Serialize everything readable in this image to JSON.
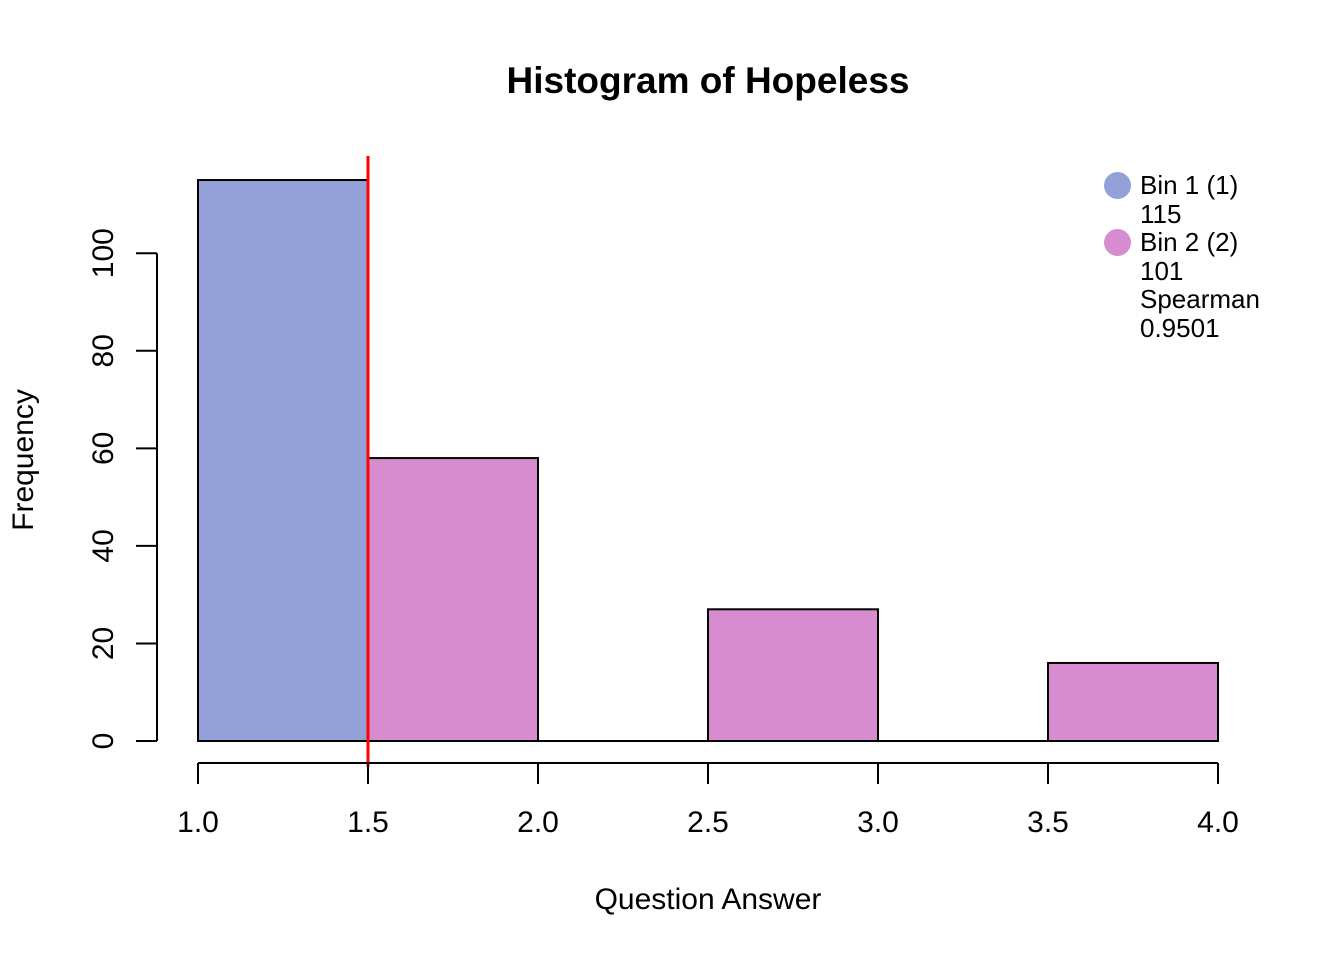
{
  "page": {
    "background_color": "#FFFFFF",
    "text_color": "#000000"
  },
  "chart_data": {
    "type": "bar",
    "subtype": "histogram",
    "title": "Histogram of Hopeless",
    "xlabel": "Question Answer",
    "ylabel": "Frequency",
    "x_ticks": [
      "1.0",
      "1.5",
      "2.0",
      "2.5",
      "3.0",
      "3.5",
      "4.0"
    ],
    "x_tick_values": [
      1.0,
      1.5,
      2.0,
      2.5,
      3.0,
      3.5,
      4.0
    ],
    "y_ticks": [
      "0",
      "20",
      "40",
      "60",
      "80",
      "100"
    ],
    "y_tick_values": [
      0,
      20,
      40,
      60,
      80,
      100
    ],
    "xlim": [
      1.0,
      4.0
    ],
    "ylim": [
      0,
      115
    ],
    "grid": false,
    "legend_position": "top-right",
    "bins": [
      {
        "x0": 1.0,
        "x1": 1.5,
        "count": 115,
        "bin": "bin1"
      },
      {
        "x0": 1.5,
        "x1": 2.0,
        "count": 58,
        "bin": "bin2"
      },
      {
        "x0": 2.5,
        "x1": 3.0,
        "count": 27,
        "bin": "bin2"
      },
      {
        "x0": 3.5,
        "x1": 4.0,
        "count": 16,
        "bin": "bin2"
      }
    ],
    "reference_line": {
      "x": 1.5,
      "color": "#FF0000"
    },
    "colors": {
      "bin1": "#94A1D9",
      "bin2": "#D88CD0",
      "bar_stroke": "#000000",
      "axis": "#000000"
    },
    "legend": {
      "rows": [
        {
          "dot": "bin1",
          "text": "Bin 1 (1)"
        },
        {
          "dot": "",
          "text": "115"
        },
        {
          "dot": "bin2",
          "text": "Bin 2 (2)"
        },
        {
          "dot": "",
          "text": "101"
        },
        {
          "dot": "",
          "text": "Spearman"
        },
        {
          "dot": "",
          "text": "0.9501"
        }
      ]
    }
  }
}
